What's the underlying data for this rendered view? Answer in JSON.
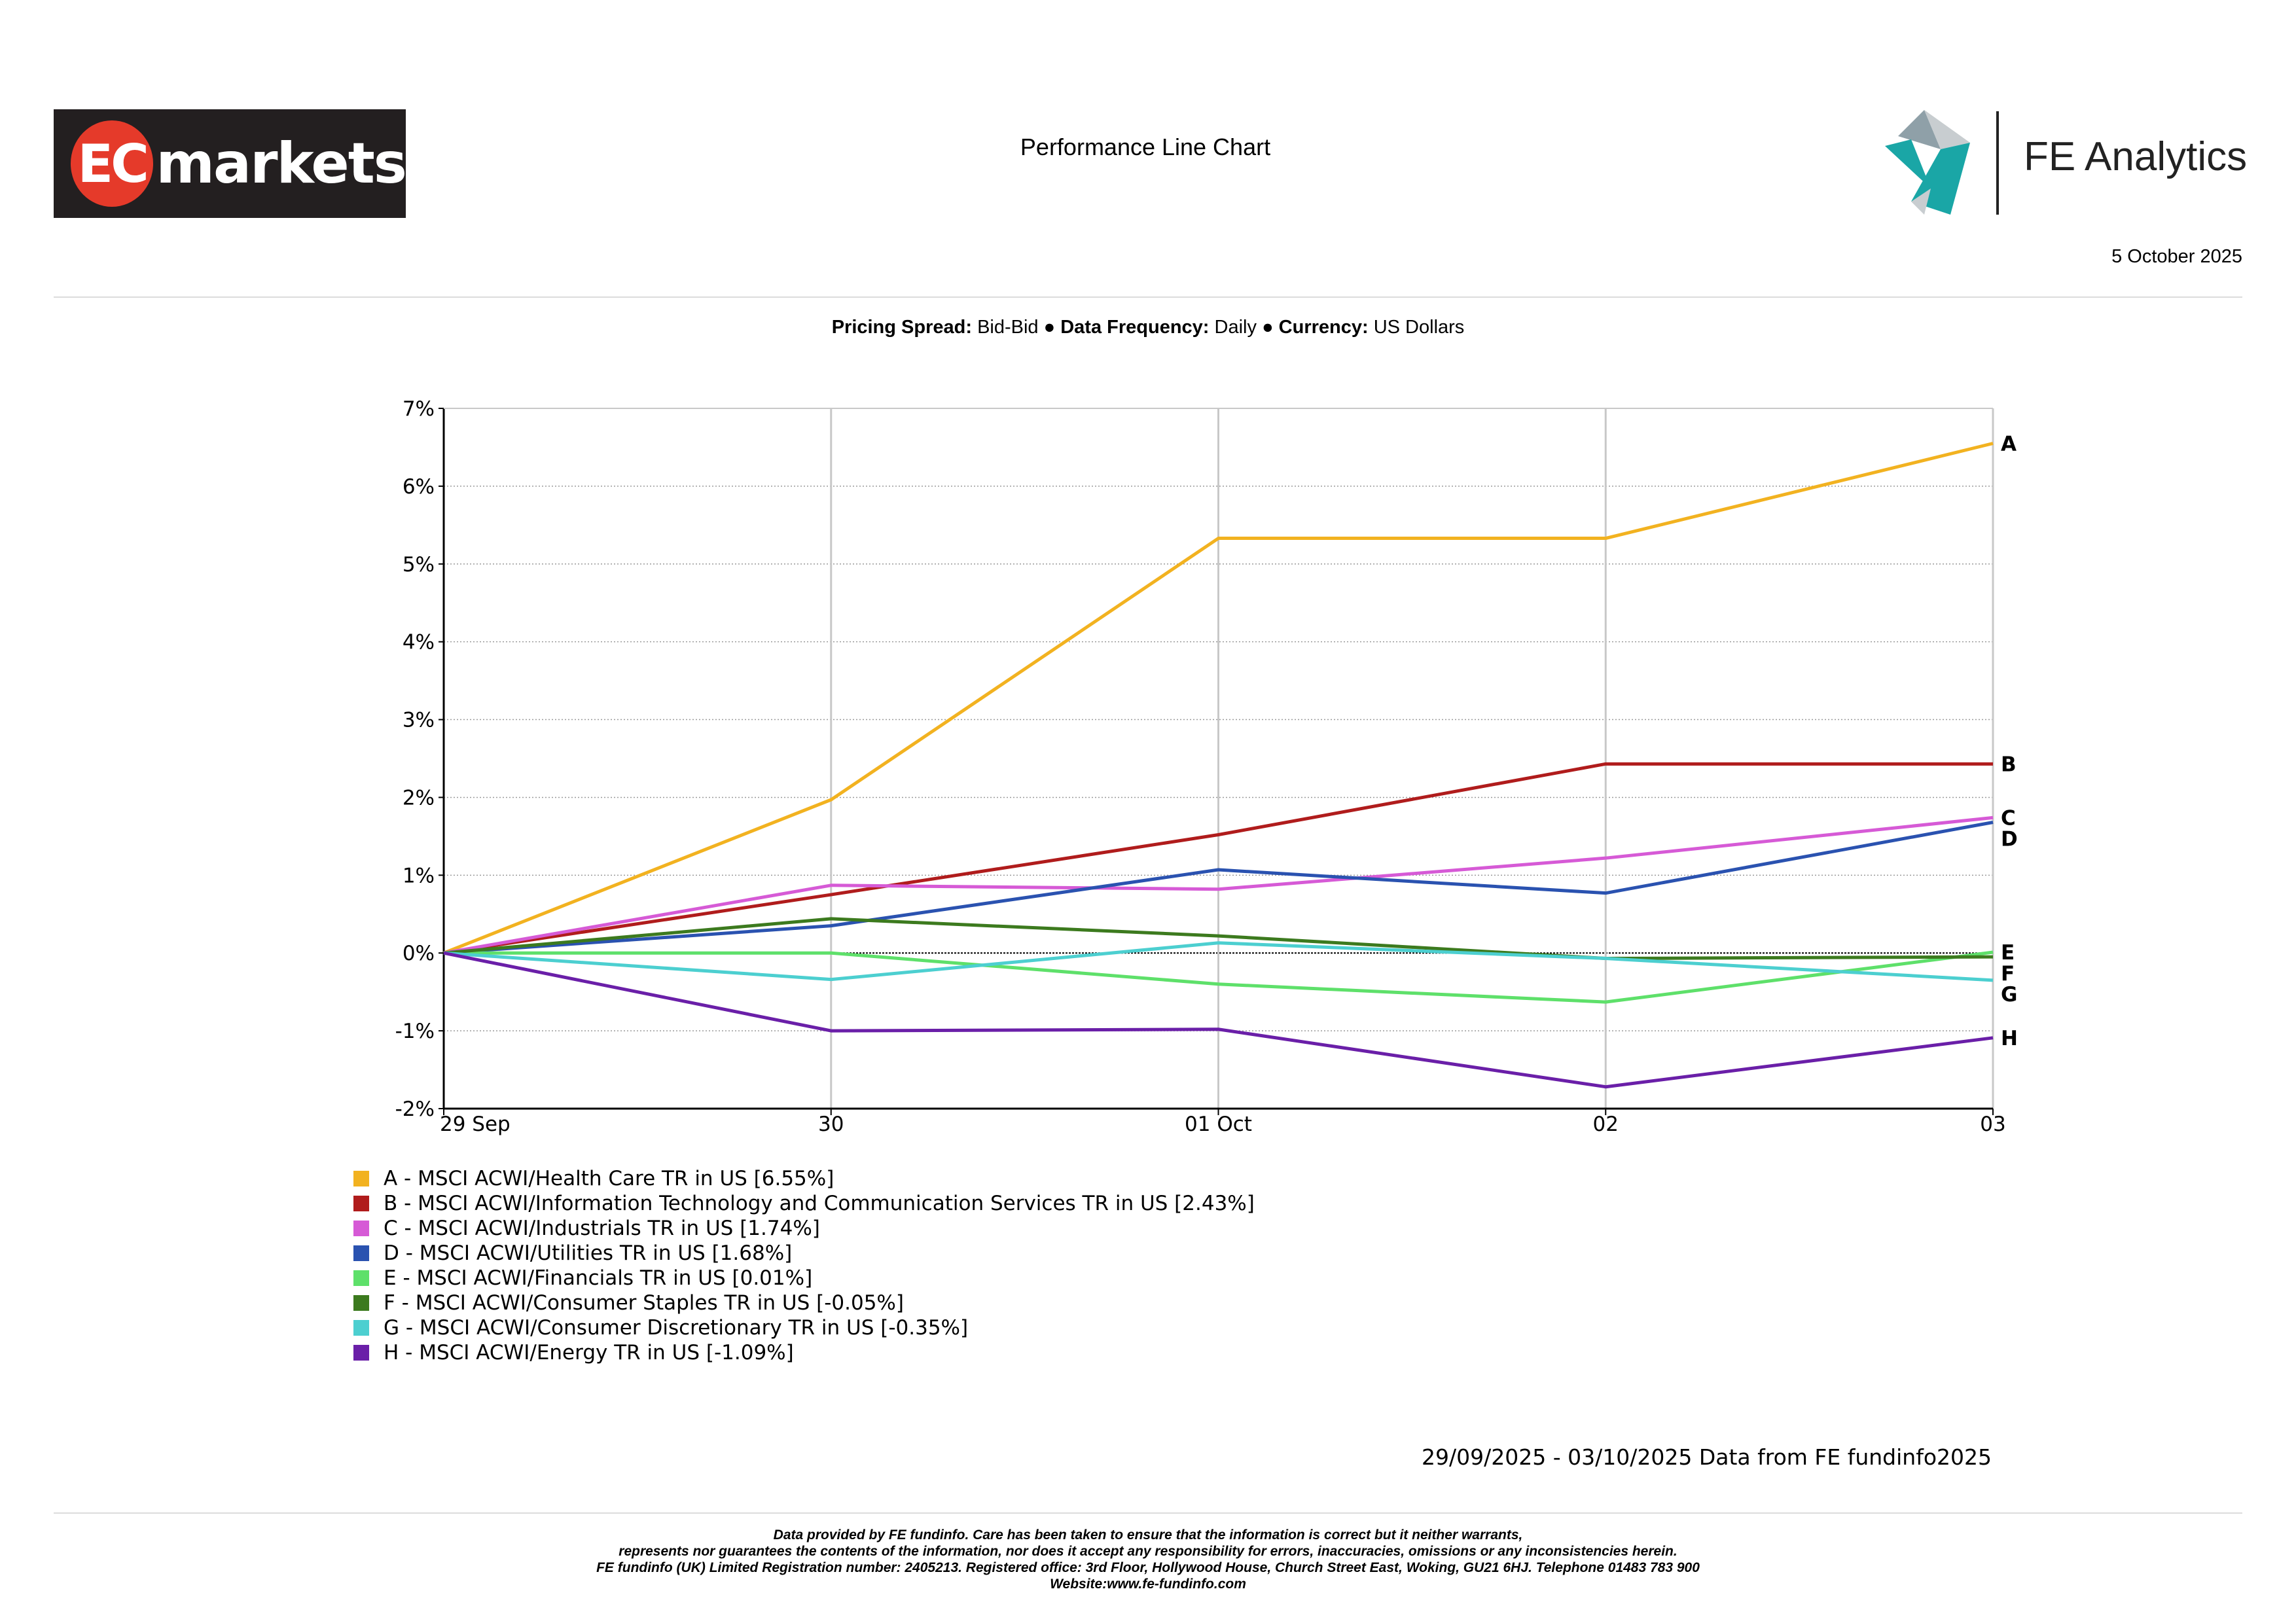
{
  "header": {
    "brand_left_circle": "EC",
    "brand_left_word": "markets",
    "title": "Performance Line Chart",
    "brand_right": "FE Analytics",
    "date": "5 October 2025"
  },
  "info": {
    "pricing_label": "Pricing Spread:",
    "pricing_value": "Bid-Bid",
    "separator": "●",
    "frequency_label": "Data Frequency:",
    "frequency_value": "Daily",
    "currency_label": "Currency:",
    "currency_value": "US Dollars"
  },
  "chart_data": {
    "type": "line",
    "title": "Performance Line Chart",
    "categories": [
      "29 Sep",
      "30",
      "01 Oct",
      "02",
      "03"
    ],
    "y_ticks": [
      "7%",
      "6%",
      "5%",
      "4%",
      "3%",
      "2%",
      "1%",
      "0%",
      "-1%",
      "-2%"
    ],
    "ylim": [
      -2,
      7
    ],
    "grid": true,
    "series": [
      {
        "label": "A",
        "name": "A - MSCI ACWI/Health Care TR in US [6.55%]",
        "color": "#f2b220",
        "values": [
          0,
          1.97,
          5.33,
          5.33,
          6.55
        ]
      },
      {
        "label": "B",
        "name": "B - MSCI ACWI/Information Technology and Communication Services TR in US [2.43%]",
        "color": "#b01c1c",
        "values": [
          0,
          0.75,
          1.52,
          2.43,
          2.43
        ]
      },
      {
        "label": "C",
        "name": "C - MSCI ACWI/Industrials TR in US [1.74%]",
        "color": "#d65ad6",
        "values": [
          0,
          0.87,
          0.82,
          1.22,
          1.74
        ]
      },
      {
        "label": "D",
        "name": "D - MSCI ACWI/Utilities TR in US [1.68%]",
        "color": "#2a52b0",
        "values": [
          0,
          0.35,
          1.07,
          0.77,
          1.68
        ]
      },
      {
        "label": "E",
        "name": "E - MSCI ACWI/Financials TR in US [0.01%]",
        "color": "#5ee06a",
        "values": [
          0,
          0.0,
          -0.4,
          -0.63,
          0.01
        ]
      },
      {
        "label": "F",
        "name": "F - MSCI ACWI/Consumer Staples TR in US [-0.05%]",
        "color": "#3c7a1e",
        "values": [
          0,
          0.44,
          0.22,
          -0.07,
          -0.05
        ]
      },
      {
        "label": "G",
        "name": "G - MSCI ACWI/Consumer Discretionary TR in US [-0.35%]",
        "color": "#4ccfd0",
        "values": [
          0,
          -0.34,
          0.13,
          -0.07,
          -0.35
        ]
      },
      {
        "label": "H",
        "name": "H - MSCI ACWI/Energy TR in US [-1.09%]",
        "color": "#6a1fa8",
        "values": [
          0,
          -1.0,
          -0.98,
          -1.72,
          -1.09
        ]
      }
    ]
  },
  "data_range": "29/09/2025 - 03/10/2025 Data from FE fundinfo2025",
  "footer": {
    "line1": "Data provided by FE fundinfo. Care has been taken to ensure that the information is correct but it neither warrants,",
    "line2": "represents nor guarantees the contents of the information, nor does it accept any responsibility for errors, inaccuracies, omissions or any inconsistencies herein.",
    "line3": "FE fundinfo (UK) Limited Registration number: 2405213. Registered office: 3rd Floor, Hollywood House, Church Street East, Woking, GU21 6HJ. Telephone 01483 783 900",
    "line4": "Website:www.fe-fundinfo.com"
  }
}
